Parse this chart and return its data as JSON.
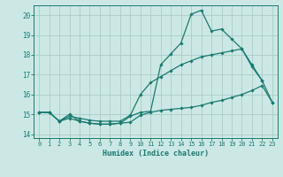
{
  "xlabel": "Humidex (Indice chaleur)",
  "bg_color": "#cce8e5",
  "line_color": "#1a7a6e",
  "grid_color": "#aaccca",
  "xlim": [
    -0.5,
    23.5
  ],
  "ylim": [
    13.8,
    20.5
  ],
  "yticks": [
    14,
    15,
    16,
    17,
    18,
    19,
    20
  ],
  "xticks": [
    0,
    1,
    2,
    3,
    4,
    5,
    6,
    7,
    8,
    9,
    10,
    11,
    12,
    13,
    14,
    15,
    16,
    17,
    18,
    19,
    20,
    21,
    22,
    23
  ],
  "line1_x": [
    0,
    1,
    2,
    3,
    4,
    5,
    6,
    7,
    8,
    9,
    10,
    11,
    12,
    13,
    14,
    15,
    16,
    17,
    18,
    19,
    20,
    21,
    22,
    23
  ],
  "line1_y": [
    15.1,
    15.1,
    14.65,
    15.0,
    14.65,
    14.55,
    14.5,
    14.5,
    14.55,
    14.6,
    14.95,
    15.1,
    15.2,
    15.25,
    15.3,
    15.35,
    15.45,
    15.6,
    15.7,
    15.85,
    16.0,
    16.2,
    16.45,
    15.6
  ],
  "line2_x": [
    0,
    1,
    2,
    3,
    4,
    5,
    6,
    7,
    8,
    9,
    10,
    11,
    12,
    13,
    14,
    15,
    16,
    17,
    18,
    19,
    20,
    21,
    22
  ],
  "line2_y": [
    15.1,
    15.1,
    14.65,
    14.8,
    14.65,
    14.55,
    14.5,
    14.5,
    14.55,
    14.9,
    15.1,
    15.15,
    17.5,
    18.05,
    18.6,
    20.05,
    20.25,
    19.2,
    19.3,
    18.8,
    18.3,
    17.4,
    16.7
  ],
  "line3_x": [
    0,
    1,
    2,
    3,
    4,
    5,
    6,
    7,
    8,
    9,
    10,
    11,
    12,
    13,
    14,
    15,
    16,
    17,
    18,
    19,
    20,
    21,
    22,
    23
  ],
  "line3_y": [
    15.1,
    15.1,
    14.65,
    14.9,
    14.8,
    14.7,
    14.65,
    14.65,
    14.65,
    14.95,
    16.0,
    16.6,
    16.9,
    17.2,
    17.5,
    17.7,
    17.9,
    18.0,
    18.1,
    18.2,
    18.3,
    17.5,
    16.7,
    15.6
  ]
}
